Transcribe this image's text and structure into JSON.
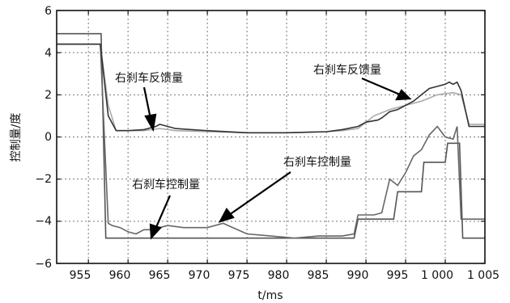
{
  "chart_data": {
    "type": "line",
    "xlabel": "t/ms",
    "ylabel": "控制量/度",
    "xlim": [
      951,
      1005
    ],
    "ylim": [
      -6,
      6
    ],
    "xticks": [
      955,
      960,
      965,
      970,
      975,
      980,
      985,
      990,
      995,
      1000,
      1005
    ],
    "xtick_labels": [
      "955",
      "960",
      "965",
      "970",
      "975",
      "980",
      "985",
      "990",
      "995",
      "1 000",
      "1 005"
    ],
    "yticks": [
      -6,
      -4,
      -2,
      0,
      2,
      4,
      6
    ],
    "ytick_labels": [
      "−6",
      "−4",
      "−2",
      "0",
      "2",
      "4",
      "6"
    ],
    "grid": true,
    "series": [
      {
        "color": "#555555",
        "x": [
          951,
          956.6,
          957.2,
          959.2,
          959.5,
          988.5,
          989.0,
          993.5,
          994.0,
          997.0,
          997.3,
          1000.0,
          1000.3,
          1001.8,
          1002.2,
          1005
        ],
        "y": [
          4.9,
          4.9,
          -4.8,
          -4.8,
          -4.8,
          -4.8,
          -3.9,
          -3.9,
          -2.6,
          -2.6,
          -1.2,
          -1.2,
          -0.3,
          -0.3,
          -4.8,
          -4.8
        ]
      },
      {
        "color": "#666666",
        "x": [
          951,
          956.5,
          957.5,
          958.0,
          959.0,
          960.0,
          961.0,
          962.0,
          963.0,
          964.0,
          965.0,
          967.0,
          970.0,
          972.0,
          975.0,
          978.0,
          981.0,
          984.0,
          987.0,
          988.5,
          989.0,
          991.0,
          992.0,
          993.0,
          994.0,
          995.0,
          996.0,
          997.0,
          998.0,
          999.0,
          1000.0,
          1001.0,
          1001.5,
          1002.0,
          1003.0,
          1005
        ],
        "y": [
          4.4,
          4.4,
          -4.1,
          -4.2,
          -4.3,
          -4.5,
          -4.6,
          -4.4,
          -4.4,
          -4.3,
          -4.2,
          -4.3,
          -4.3,
          -4.1,
          -4.6,
          -4.7,
          -4.8,
          -4.7,
          -4.7,
          -4.6,
          -3.7,
          -3.7,
          -3.6,
          -2.0,
          -2.3,
          -1.7,
          -0.9,
          -0.6,
          0.1,
          0.5,
          0.0,
          -0.1,
          0.5,
          -3.9,
          -3.9,
          -3.9
        ]
      },
      {
        "color": "#aaaaaa",
        "x": [
          951,
          956.5,
          957.5,
          958.5,
          960.0,
          962.0,
          964.0,
          966.0,
          970.0,
          975.0,
          980.0,
          985.0,
          987.0,
          989.0,
          991.0,
          993.0,
          995.0,
          997.0,
          999.0,
          1001.0,
          1002.0,
          1003.0,
          1005
        ],
        "y": [
          4.4,
          4.4,
          1.5,
          0.3,
          0.3,
          0.3,
          0.4,
          0.3,
          0.25,
          0.2,
          0.2,
          0.25,
          0.3,
          0.4,
          1.0,
          1.3,
          1.5,
          1.7,
          2.0,
          2.1,
          2.0,
          0.6,
          0.6
        ]
      },
      {
        "color": "#333333",
        "x": [
          951,
          956.5,
          957.5,
          958.5,
          960.0,
          962.0,
          963.5,
          964.0,
          966.0,
          968.0,
          970.0,
          975.0,
          980.0,
          985.0,
          987.0,
          989.0,
          990.0,
          991.5,
          992.0,
          993.0,
          994.0,
          995.0,
          996.0,
          997.0,
          998.0,
          999.0,
          1000.0,
          1000.5,
          1001.0,
          1001.5,
          1002.0,
          1003.0,
          1005
        ],
        "y": [
          4.4,
          4.4,
          1.0,
          0.3,
          0.3,
          0.35,
          0.5,
          0.6,
          0.4,
          0.35,
          0.3,
          0.2,
          0.2,
          0.25,
          0.35,
          0.5,
          0.7,
          0.8,
          0.9,
          1.2,
          1.3,
          1.5,
          1.7,
          2.0,
          2.3,
          2.4,
          2.5,
          2.6,
          2.5,
          2.6,
          2.2,
          0.5,
          0.5
        ]
      }
    ],
    "annotations": [
      "右刹车反馈量",
      "右刹车反馈量",
      "右刹车控制量",
      "右刹车控制量"
    ]
  }
}
